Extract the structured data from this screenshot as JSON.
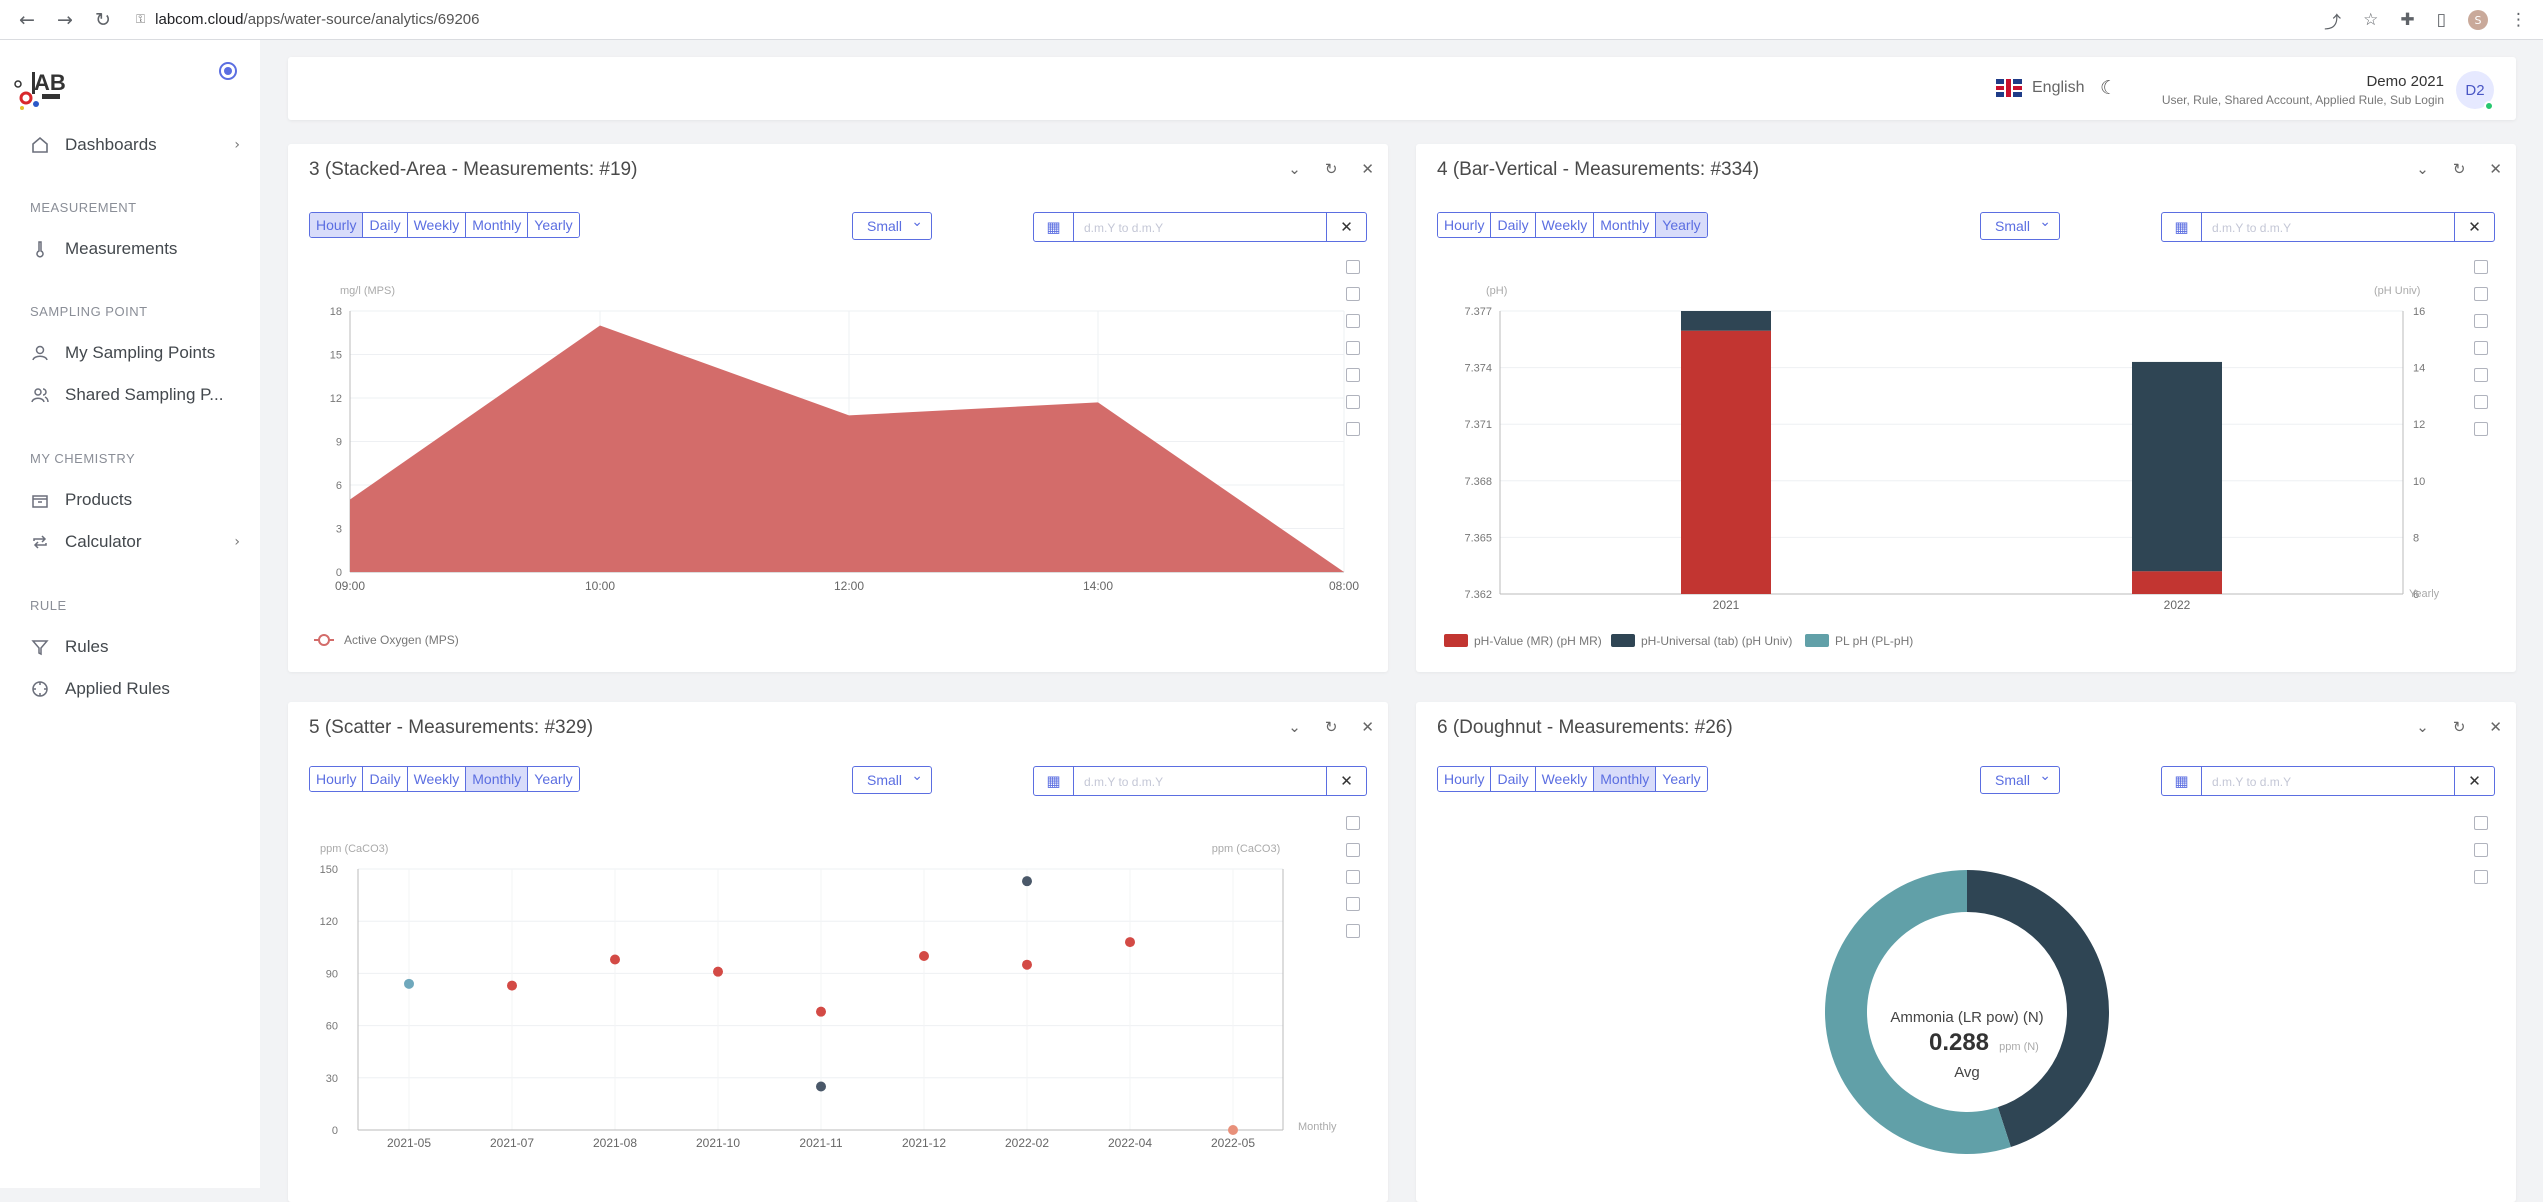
{
  "browser": {
    "url_host": "labcom.cloud",
    "url_path": "/apps/water-source/analytics/69206",
    "profile_initial": "S"
  },
  "sidebar": {
    "items": [
      {
        "label": "Dashboards",
        "icon": "home-icon",
        "has_chevron": true
      },
      {
        "label": "Measurements",
        "icon": "thermometer-icon"
      },
      {
        "label": "My Sampling Points",
        "icon": "user-icon"
      },
      {
        "label": "Shared Sampling P...",
        "icon": "users-icon"
      },
      {
        "label": "Products",
        "icon": "box-icon"
      },
      {
        "label": "Calculator",
        "icon": "repeat-icon",
        "has_chevron": true
      },
      {
        "label": "Rules",
        "icon": "filter-icon"
      },
      {
        "label": "Applied Rules",
        "icon": "crosshair-icon"
      }
    ],
    "sections": [
      "MEASUREMENT",
      "SAMPLING POINT",
      "MY CHEMISTRY",
      "RULE"
    ]
  },
  "topbar": {
    "language": "English",
    "user_name": "Demo 2021",
    "user_roles": "User, Rule, Shared Account, Applied Rule, Sub Login",
    "avatar_initials": "D2"
  },
  "common": {
    "periods": [
      "Hourly",
      "Daily",
      "Weekly",
      "Monthly",
      "Yearly"
    ],
    "size_label": "Small",
    "date_placeholder": "d.m.Y to d.m.Y"
  },
  "cards": [
    {
      "title": "3 (Stacked-Area - Measurements: #19)",
      "active_period": "Hourly"
    },
    {
      "title": "4 (Bar-Vertical - Measurements: #334)",
      "active_period": "Yearly"
    },
    {
      "title": "5 (Scatter - Measurements: #329)",
      "active_period": "Monthly"
    },
    {
      "title": "6 (Doughnut - Measurements: #26)",
      "active_period": "Monthly"
    }
  ],
  "chart_data": [
    {
      "type": "area",
      "ylabel": "mg/l (MPS)",
      "categories": [
        "09:00",
        "10:00",
        "12:00",
        "14:00",
        "08:00"
      ],
      "values": [
        5,
        17,
        10.8,
        11.7,
        0
      ],
      "ylim": [
        0,
        18
      ],
      "yticks": [
        0,
        3,
        6,
        9,
        12,
        15,
        18
      ],
      "series": [
        {
          "name": "Active Oxygen (MPS)",
          "color": "#d36c6a"
        }
      ],
      "grid": true
    },
    {
      "type": "bar",
      "ylabel_left": "(pH)",
      "ylabel_right": "(pH Univ)",
      "xlabel_right": "Yearly",
      "categories": [
        "2021",
        "2022"
      ],
      "left_ticks": [
        "7.362",
        "7.365",
        "7.368",
        "7.371",
        "7.374",
        "7.377"
      ],
      "right_ticks": [
        "6",
        "8",
        "10",
        "12",
        "14",
        "16"
      ],
      "ylim_right": [
        6,
        16
      ],
      "stacks": [
        {
          "red": 15.3,
          "total": 16.0
        },
        {
          "red": 6.8,
          "total": 14.2
        }
      ],
      "series": [
        {
          "name": "pH-Value (MR) (pH MR)",
          "color": "#c23531"
        },
        {
          "name": "pH-Universal (tab) (pH Univ)",
          "color": "#2f4554"
        },
        {
          "name": "PL pH (PL-pH)",
          "color": "#61a0a8"
        }
      ]
    },
    {
      "type": "scatter",
      "ylabel_left": "ppm (CaCO3)",
      "ylabel_right": "ppm (CaCO3)",
      "xlabel_right": "Monthly",
      "categories": [
        "2021-05",
        "2021-07",
        "2021-08",
        "2021-10",
        "2021-11",
        "2021-12",
        "2022-02",
        "2022-04",
        "2022-05"
      ],
      "ylim": [
        0,
        150
      ],
      "yticks": [
        0,
        30,
        60,
        90,
        120,
        150
      ],
      "points": [
        {
          "x": "2021-05",
          "y": 84,
          "color": "#6fa8bc"
        },
        {
          "x": "2021-07",
          "y": 83,
          "color": "#d34a45"
        },
        {
          "x": "2021-08",
          "y": 98,
          "color": "#d34a45"
        },
        {
          "x": "2021-10",
          "y": 91,
          "color": "#d34a45"
        },
        {
          "x": "2021-11",
          "y": 68,
          "color": "#d34a45"
        },
        {
          "x": "2021-11",
          "y": 25,
          "color": "#4a5869"
        },
        {
          "x": "2021-12",
          "y": 100,
          "color": "#d34a45"
        },
        {
          "x": "2022-02",
          "y": 95,
          "color": "#d34a45"
        },
        {
          "x": "2022-02",
          "y": 143,
          "color": "#4a5869"
        },
        {
          "x": "2022-04",
          "y": 108,
          "color": "#d34a45"
        },
        {
          "x": "2022-05",
          "y": 0,
          "color": "#e8907a"
        }
      ]
    },
    {
      "type": "pie",
      "center_label": "Ammonia (LR pow) (N)",
      "center_value": "0.288",
      "center_unit": "ppm (N)",
      "center_sub": "Avg",
      "slices": [
        {
          "value": 0.45,
          "color": "#2f4554"
        },
        {
          "value": 0.55,
          "color": "#61a0a8"
        }
      ]
    }
  ]
}
